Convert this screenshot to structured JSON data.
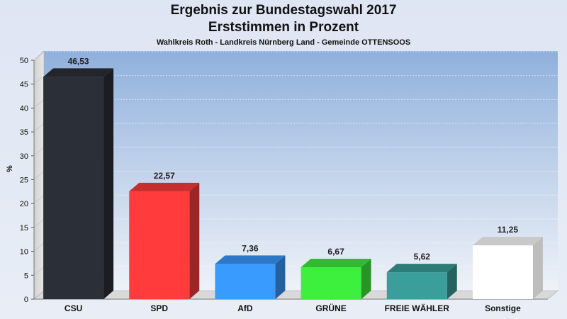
{
  "title": "Ergebnis zur Bundestagswahl 2017",
  "subtitle": "Erststimmen in Prozent",
  "subsubtitle": "Wahlkreis Roth - Landkreis Nürnberg Land - Gemeinde OTTENSOOS",
  "chart_data": {
    "type": "bar",
    "title": "Ergebnis zur Bundestagswahl 2017",
    "subtitle": "Erststimmen in Prozent",
    "ylabel": "%",
    "xlabel": "",
    "ylim": [
      0,
      50
    ],
    "yticks": [
      0,
      5,
      10,
      15,
      20,
      25,
      30,
      35,
      40,
      45,
      50
    ],
    "grid": true,
    "categories": [
      "CSU",
      "SPD",
      "AfD",
      "GRÜNE",
      "FREIE WÄHLER",
      "Sonstige"
    ],
    "values": [
      46.53,
      22.57,
      7.36,
      6.67,
      5.62,
      11.25
    ],
    "value_labels": [
      "46,53",
      "22,57",
      "7,36",
      "6,67",
      "5,62",
      "11,25"
    ],
    "colors": [
      "#2b2f38",
      "#ff3b3b",
      "#3a9bff",
      "#3ef03e",
      "#3a9f9a",
      "#ffffff"
    ]
  }
}
